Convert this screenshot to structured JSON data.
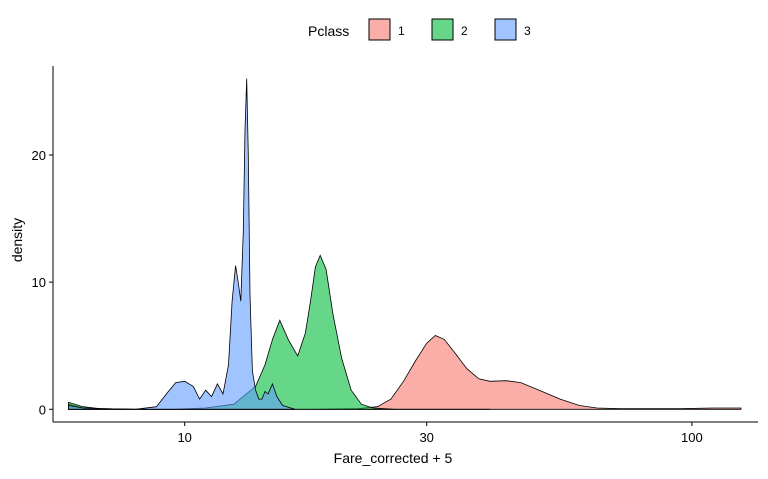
{
  "chart_data": {
    "type": "area",
    "subtype": "density",
    "x_scale": "log10",
    "xlabel": "Fare_corrected + 5",
    "ylabel": "density",
    "xlim": [
      5.5,
      135
    ],
    "ylim": [
      -1.0,
      27
    ],
    "x_ticks": [
      10,
      30,
      100
    ],
    "y_ticks": [
      0,
      10,
      20
    ],
    "grid": false,
    "legend": {
      "title": "Pclass",
      "position": "top",
      "entries": [
        "1",
        "2",
        "3"
      ]
    },
    "series": [
      {
        "name": "1",
        "color": "#F8766D",
        "x": [
          5.9,
          6.3,
          6.8,
          8,
          12,
          18,
          22,
          24,
          25.5,
          27,
          28.5,
          30,
          31.2,
          32.5,
          34,
          36,
          38,
          40,
          43,
          46,
          50,
          55,
          60,
          65,
          72,
          80,
          95,
          110,
          125
        ],
        "y": [
          0.4,
          0.1,
          0.05,
          0,
          0,
          0,
          0.05,
          0.2,
          0.8,
          2.2,
          3.8,
          5.2,
          5.8,
          5.5,
          4.5,
          3.2,
          2.4,
          2.2,
          2.25,
          2.1,
          1.5,
          0.8,
          0.3,
          0.1,
          0.05,
          0.05,
          0.05,
          0.1,
          0.1
        ]
      },
      {
        "name": "2",
        "color": "#00BA38",
        "x": [
          5.9,
          6.3,
          6.8,
          8,
          9.5,
          11,
          12.5,
          13.8,
          14.4,
          14.9,
          15.4,
          16.0,
          16.7,
          17.3,
          17.7,
          18.1,
          18.5,
          19.0,
          19.6,
          20.4,
          21.3,
          22.3,
          23.5,
          26,
          30,
          40
        ],
        "y": [
          0.55,
          0.2,
          0.05,
          0,
          0,
          0.1,
          0.4,
          1.8,
          3.5,
          5.5,
          7.0,
          5.5,
          4.2,
          6.0,
          8.5,
          11.2,
          12.1,
          11.0,
          7.5,
          4.0,
          1.5,
          0.4,
          0.1,
          0,
          0,
          0
        ]
      },
      {
        "name": "3",
        "color": "#619CFF",
        "x": [
          5.9,
          6.3,
          6.8,
          8,
          8.8,
          9.2,
          9.6,
          10.0,
          10.4,
          10.7,
          11.0,
          11.3,
          11.6,
          11.9,
          12.2,
          12.4,
          12.6,
          12.75,
          12.9,
          13.05,
          13.15,
          13.25,
          13.35,
          13.45,
          13.6,
          13.8,
          14.0,
          14.2,
          14.4,
          14.6,
          14.9,
          15.2,
          15.6,
          16.5
        ],
        "y": [
          0.3,
          0.1,
          0.05,
          0,
          0.2,
          1.2,
          2.1,
          2.2,
          1.8,
          0.8,
          1.5,
          1.0,
          2.0,
          1.2,
          3.5,
          8.5,
          11.3,
          10.0,
          8.5,
          14.0,
          22.0,
          26.0,
          20.0,
          9.0,
          3.0,
          1.5,
          0.8,
          0.8,
          1.4,
          1.2,
          2.0,
          1.0,
          0.3,
          0
        ]
      }
    ]
  }
}
